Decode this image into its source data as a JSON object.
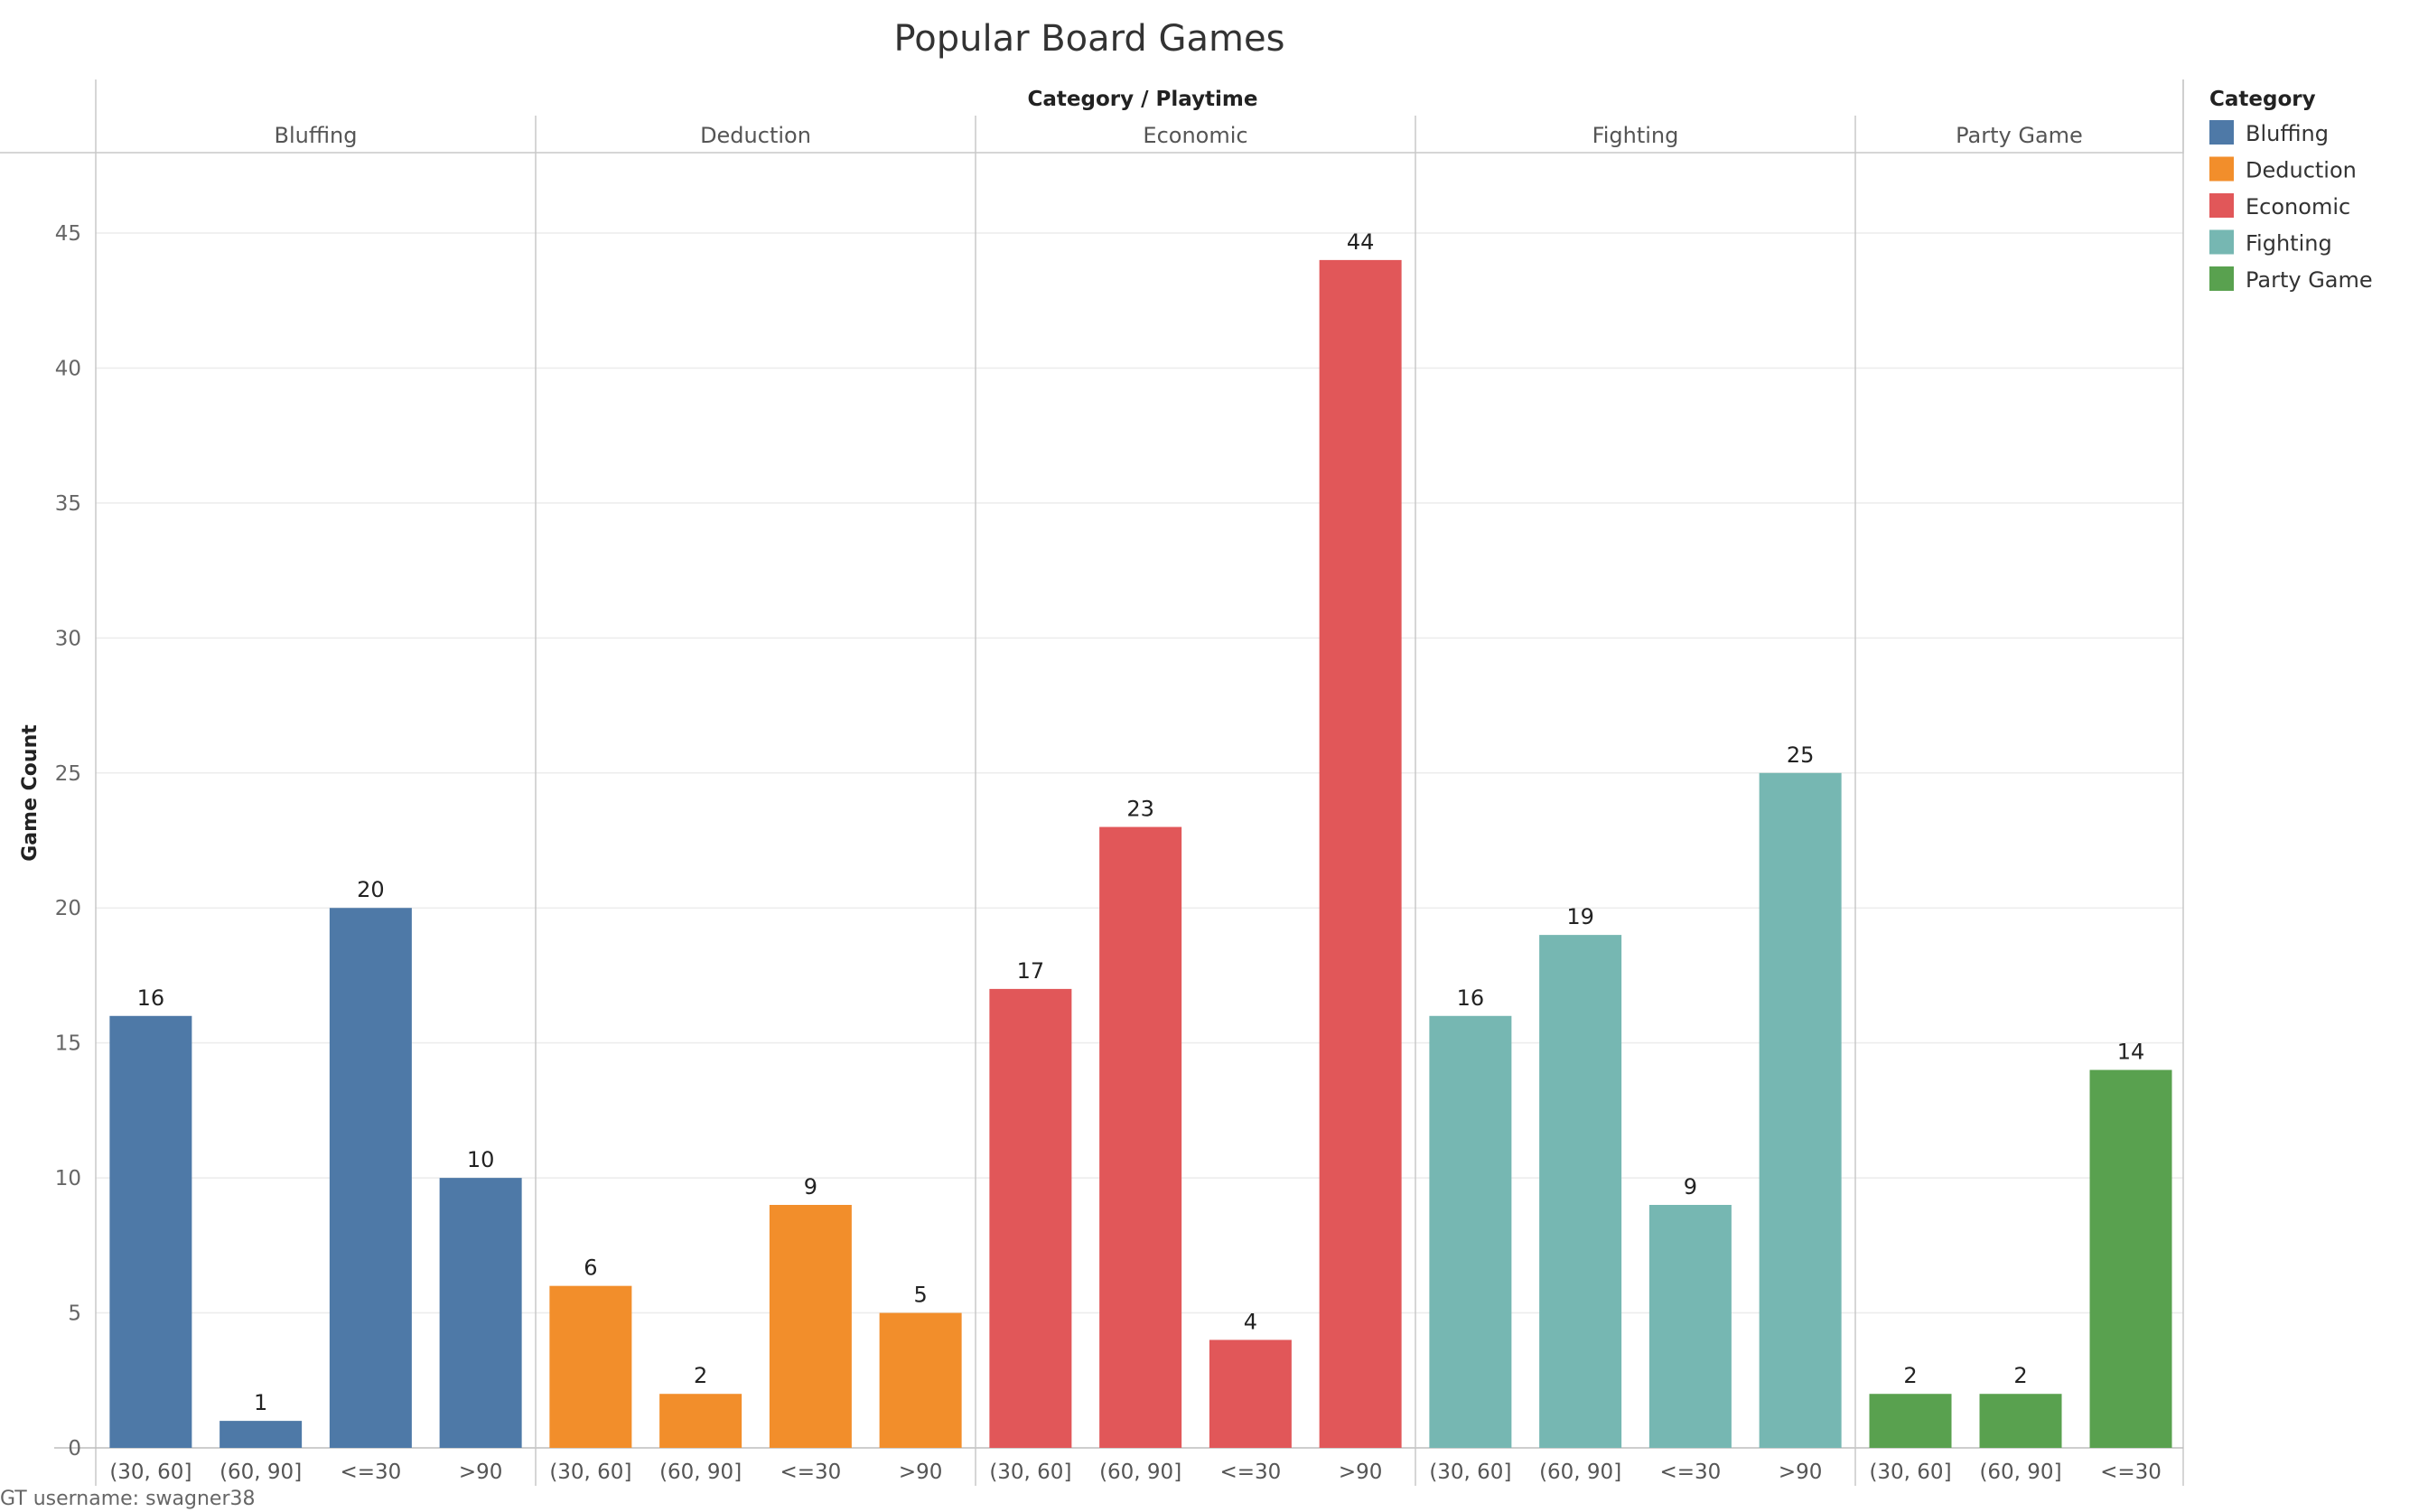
{
  "chart_data": {
    "type": "bar",
    "title": "Popular Board Games",
    "header": "Category / Playtime",
    "ylabel": "Game Count",
    "ylim": [
      0,
      48
    ],
    "yticks": [
      0,
      5,
      10,
      15,
      20,
      25,
      30,
      35,
      40,
      45
    ],
    "grid": true,
    "legend_title": "Category",
    "legend_position": "right",
    "panels": [
      {
        "name": "Bluffing",
        "color": "#4e79a7",
        "categories": [
          "(30, 60]",
          "(60, 90]",
          "<=30",
          ">90"
        ],
        "values": [
          16,
          1,
          20,
          10
        ]
      },
      {
        "name": "Deduction",
        "color": "#f28e2b",
        "categories": [
          "(30, 60]",
          "(60, 90]",
          "<=30",
          ">90"
        ],
        "values": [
          6,
          2,
          9,
          5
        ]
      },
      {
        "name": "Economic",
        "color": "#e15759",
        "categories": [
          "(30, 60]",
          "(60, 90]",
          "<=30",
          ">90"
        ],
        "values": [
          17,
          23,
          4,
          44
        ]
      },
      {
        "name": "Fighting",
        "color": "#76b7b2",
        "categories": [
          "(30, 60]",
          "(60, 90]",
          "<=30",
          ">90"
        ],
        "values": [
          16,
          19,
          9,
          25
        ]
      },
      {
        "name": "Party Game",
        "color": "#59a14f",
        "categories": [
          "(30, 60]",
          "(60, 90]",
          "<=30"
        ],
        "values": [
          2,
          2,
          14
        ]
      }
    ]
  },
  "footer": "GT username: swagner38"
}
